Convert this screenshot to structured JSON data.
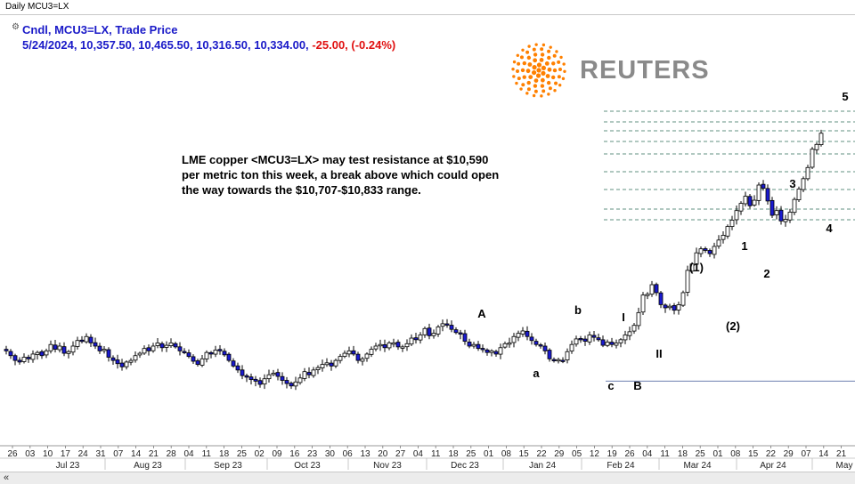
{
  "window": {
    "title": "Daily MCU3=LX"
  },
  "legend": {
    "line1": "Cndl, MCU3=LX, Trade Price",
    "ohlc": "5/24/2024, 10,357.50, 10,465.50, 10,316.50, 10,334.00,",
    "change": "-25.00, (-0.24%)"
  },
  "annotation": {
    "line1": "LME copper <MCU3=LX> may test resistance at $10,590",
    "line2": "per metric ton this week, a break above which could open",
    "line3": " the way towards the $10,707-$10,833 range."
  },
  "logo": {
    "text": "REUTERS",
    "color": "#ff8000"
  },
  "scrollbar": {
    "label": "«"
  },
  "chart_data": {
    "type": "candlestick",
    "colors": {
      "up": "#ffffff",
      "down": "#1a1ad0",
      "outline": "#000000"
    },
    "x_ticks": [
      "26",
      "03",
      "10",
      "17",
      "24",
      "31",
      "07",
      "14",
      "21",
      "28",
      "04",
      "11",
      "18",
      "25",
      "02",
      "09",
      "16",
      "23",
      "30",
      "06",
      "13",
      "20",
      "27",
      "04",
      "11",
      "18",
      "25",
      "01",
      "08",
      "15",
      "22",
      "29",
      "05",
      "12",
      "19",
      "26",
      "04",
      "11",
      "18",
      "25",
      "01",
      "08",
      "15",
      "22",
      "29",
      "07",
      "14",
      "21"
    ],
    "month_labels": [
      "Jul 23",
      "Aug 23",
      "Sep 23",
      "Oct 23",
      "Nov 23",
      "Dec 23",
      "Jan 24",
      "Feb 24",
      "Mar 24",
      "Apr 24",
      "May"
    ],
    "wave_labels": [
      "A",
      "b",
      "a",
      "c",
      "B",
      "I",
      "II",
      "(1)",
      "(2)",
      "1",
      "2",
      "3",
      "4",
      "5"
    ],
    "closes": [
      8420,
      8360,
      8300,
      8280,
      8340,
      8320,
      8380,
      8400,
      8360,
      8420,
      8500,
      8440,
      8480,
      8390,
      8410,
      8480,
      8550,
      8540,
      8600,
      8520,
      8480,
      8420,
      8440,
      8340,
      8300,
      8260,
      8220,
      8280,
      8300,
      8360,
      8390,
      8450,
      8420,
      8480,
      8520,
      8460,
      8490,
      8520,
      8470,
      8420,
      8400,
      8350,
      8290,
      8250,
      8320,
      8400,
      8380,
      8430,
      8420,
      8370,
      8300,
      8230,
      8180,
      8110,
      8090,
      8060,
      8040,
      8000,
      8070,
      8120,
      8140,
      8100,
      8050,
      8010,
      7980,
      8030,
      8080,
      8160,
      8120,
      8180,
      8210,
      8250,
      8270,
      8230,
      8300,
      8350,
      8390,
      8420,
      8380,
      8300,
      8320,
      8380,
      8440,
      8480,
      8500,
      8460,
      8520,
      8520,
      8470,
      8470,
      8510,
      8580,
      8560,
      8620,
      8700,
      8610,
      8640,
      8720,
      8760,
      8750,
      8690,
      8650,
      8630,
      8540,
      8480,
      8500,
      8450,
      8440,
      8400,
      8420,
      8380,
      8460,
      8510,
      8520,
      8600,
      8640,
      8670,
      8600,
      8550,
      8500,
      8480,
      8420,
      8320,
      8300,
      8310,
      8300,
      8410,
      8500,
      8570,
      8570,
      8540,
      8620,
      8590,
      8560,
      8490,
      8530,
      8500,
      8520,
      8560,
      8620,
      8660,
      8740,
      8900,
      9120,
      9130,
      9250,
      9150,
      9000,
      8960,
      8980,
      8930,
      9000,
      9150,
      9430,
      9510,
      9650,
      9700,
      9680,
      9640,
      9730,
      9810,
      9870,
      9980,
      10060,
      10180,
      10270,
      10360,
      10240,
      10310,
      10500,
      10460,
      10300,
      10120,
      10180,
      10050,
      10070,
      10160,
      10320,
      10450,
      10580,
      10720,
      10950,
      11010,
      11150
    ]
  }
}
